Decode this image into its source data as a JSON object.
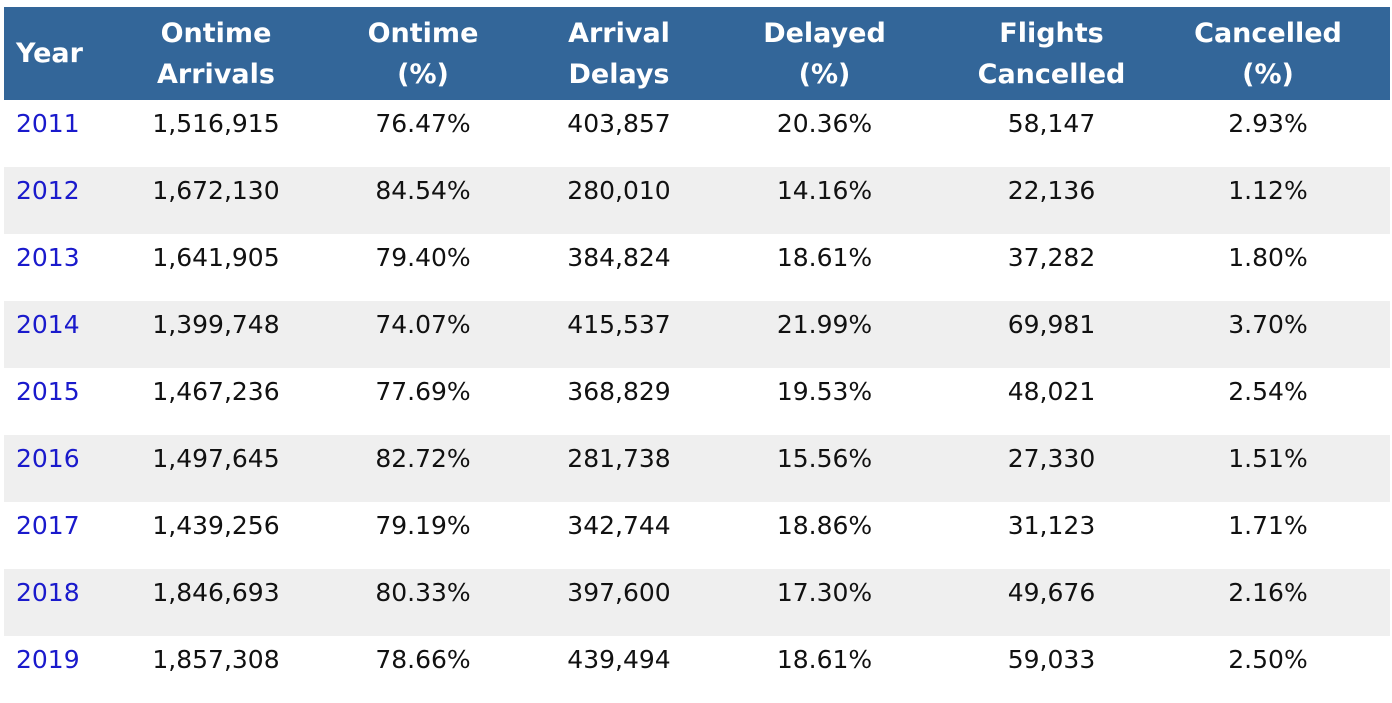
{
  "headers": [
    {
      "line1": "Year",
      "line2": ""
    },
    {
      "line1": "Ontime",
      "line2": "Arrivals"
    },
    {
      "line1": "Ontime",
      "line2": "(%)"
    },
    {
      "line1": "Arrival",
      "line2": "Delays"
    },
    {
      "line1": "Delayed",
      "line2": "(%)"
    },
    {
      "line1": "Flights",
      "line2": "Cancelled"
    },
    {
      "line1": "Cancelled",
      "line2": "(%)"
    }
  ],
  "rows": [
    {
      "year": "2011",
      "ontime_arrivals": "1,516,915",
      "ontime_pct": "76.47%",
      "arrival_delays": "403,857",
      "delayed_pct": "20.36%",
      "flights_cancelled": "58,147",
      "cancelled_pct": "2.93%"
    },
    {
      "year": "2012",
      "ontime_arrivals": "1,672,130",
      "ontime_pct": "84.54%",
      "arrival_delays": "280,010",
      "delayed_pct": "14.16%",
      "flights_cancelled": "22,136",
      "cancelled_pct": "1.12%"
    },
    {
      "year": "2013",
      "ontime_arrivals": "1,641,905",
      "ontime_pct": "79.40%",
      "arrival_delays": "384,824",
      "delayed_pct": "18.61%",
      "flights_cancelled": "37,282",
      "cancelled_pct": "1.80%"
    },
    {
      "year": "2014",
      "ontime_arrivals": "1,399,748",
      "ontime_pct": "74.07%",
      "arrival_delays": "415,537",
      "delayed_pct": "21.99%",
      "flights_cancelled": "69,981",
      "cancelled_pct": "3.70%"
    },
    {
      "year": "2015",
      "ontime_arrivals": "1,467,236",
      "ontime_pct": "77.69%",
      "arrival_delays": "368,829",
      "delayed_pct": "19.53%",
      "flights_cancelled": "48,021",
      "cancelled_pct": "2.54%"
    },
    {
      "year": "2016",
      "ontime_arrivals": "1,497,645",
      "ontime_pct": "82.72%",
      "arrival_delays": "281,738",
      "delayed_pct": "15.56%",
      "flights_cancelled": "27,330",
      "cancelled_pct": "1.51%"
    },
    {
      "year": "2017",
      "ontime_arrivals": "1,439,256",
      "ontime_pct": "79.19%",
      "arrival_delays": "342,744",
      "delayed_pct": "18.86%",
      "flights_cancelled": "31,123",
      "cancelled_pct": "1.71%"
    },
    {
      "year": "2018",
      "ontime_arrivals": "1,846,693",
      "ontime_pct": "80.33%",
      "arrival_delays": "397,600",
      "delayed_pct": "17.30%",
      "flights_cancelled": "49,676",
      "cancelled_pct": "2.16%"
    },
    {
      "year": "2019",
      "ontime_arrivals": "1,857,308",
      "ontime_pct": "78.66%",
      "arrival_delays": "439,494",
      "delayed_pct": "18.61%",
      "flights_cancelled": "59,033",
      "cancelled_pct": "2.50%"
    }
  ],
  "colors": {
    "header_bg": "#336699",
    "header_text": "#ffffff",
    "row_alt_bg": "#efefef",
    "year_link": "#1a1acc",
    "cell_text": "#111111"
  }
}
